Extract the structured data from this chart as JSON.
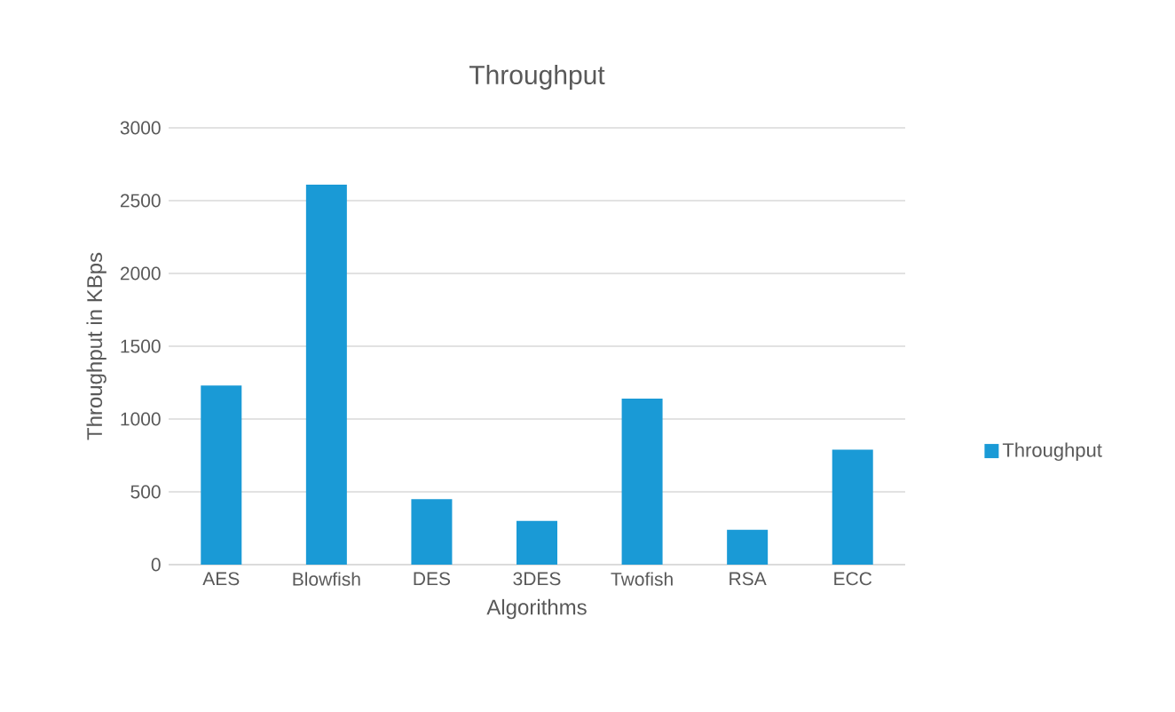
{
  "chart_data": {
    "type": "bar",
    "title": "Throughput",
    "xlabel": "Algorithms",
    "ylabel": "Throughput in KBps",
    "categories": [
      "AES",
      "Blowfish",
      "DES",
      "3DES",
      "Twofish",
      "RSA",
      "ECC"
    ],
    "series": [
      {
        "name": "Throughput",
        "color": "#1a9ad6",
        "values": [
          1230,
          2610,
          450,
          300,
          1140,
          240,
          790
        ]
      }
    ],
    "ylim": [
      0,
      3000
    ],
    "yticks": [
      0,
      500,
      1000,
      1500,
      2000,
      2500,
      3000
    ],
    "grid": "y",
    "legend": "right"
  }
}
